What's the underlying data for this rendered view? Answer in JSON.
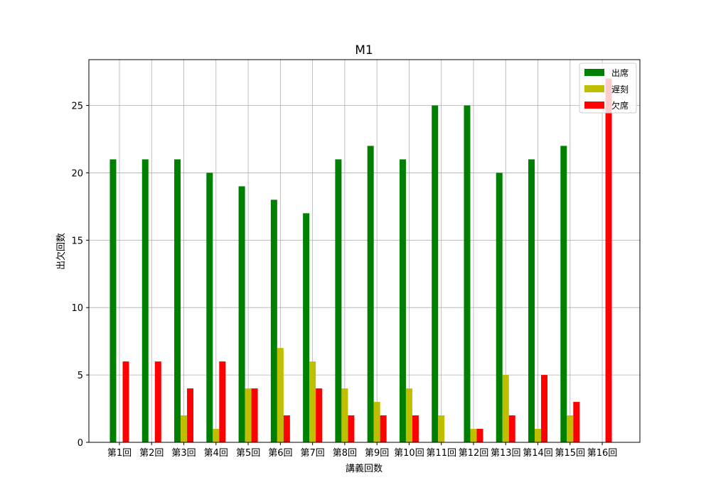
{
  "chart_data": {
    "type": "bar",
    "title": "M1",
    "xlabel": "講義回数",
    "ylabel": "出欠回数",
    "ylim": [
      0,
      28.4
    ],
    "yticks": [
      0,
      5,
      10,
      15,
      20,
      25
    ],
    "grid": true,
    "legend_position": "top-right",
    "categories": [
      "第1回",
      "第2回",
      "第3回",
      "第4回",
      "第5回",
      "第6回",
      "第7回",
      "第8回",
      "第9回",
      "第10回",
      "第11回",
      "第12回",
      "第13回",
      "第14回",
      "第15回",
      "第16回"
    ],
    "series": [
      {
        "name": "出席",
        "color": "#008000",
        "values": [
          21,
          21,
          21,
          20,
          19,
          18,
          17,
          21,
          22,
          21,
          25,
          25,
          20,
          21,
          22,
          0
        ]
      },
      {
        "name": "遅刻",
        "color": "#bfbf00",
        "values": [
          0,
          0,
          2,
          1,
          4,
          7,
          6,
          4,
          3,
          4,
          2,
          1,
          5,
          1,
          2,
          0
        ]
      },
      {
        "name": "欠席",
        "color": "#ff0000",
        "values": [
          6,
          6,
          4,
          6,
          4,
          2,
          4,
          2,
          2,
          2,
          0,
          1,
          2,
          5,
          3,
          27
        ]
      }
    ]
  }
}
